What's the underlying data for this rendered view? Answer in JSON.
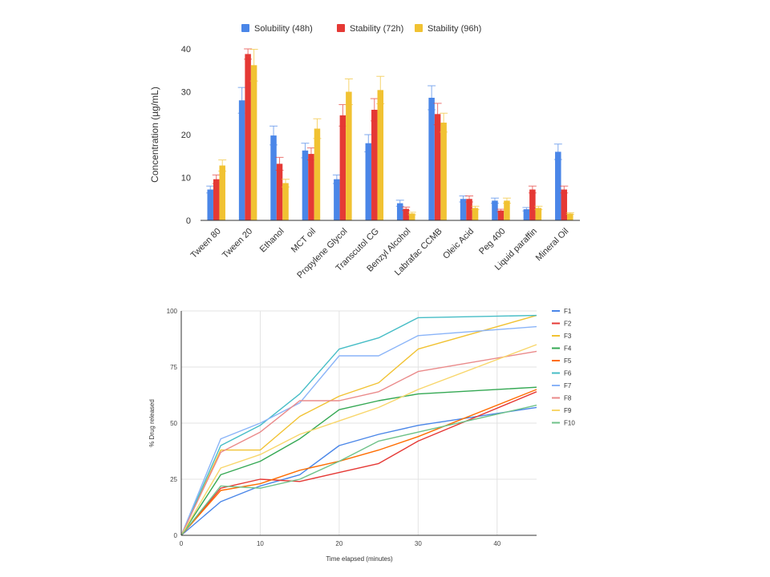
{
  "chart_data": [
    {
      "type": "bar",
      "title": "",
      "xlabel": "",
      "ylabel": "Concentration (µg/mL)",
      "ylim": [
        0,
        40
      ],
      "yticks": [
        0,
        10,
        20,
        30,
        40
      ],
      "legend_position": "top",
      "grid": false,
      "categories": [
        "Tween 80",
        "Tween 20",
        "Ethanol",
        "MCT oil",
        "Propylene Glycol",
        "Transcutol CG",
        "Benzyl Alcohol",
        "Labrafac CCMB",
        "Oleic Acid",
        "Peg 400",
        "Liquid paraffin",
        "Mineral Oil"
      ],
      "series": [
        {
          "name": "Solubility (48h)",
          "color": "#4a86e8",
          "values": [
            7.2,
            28,
            19.8,
            16.3,
            9.6,
            18,
            4,
            28.6,
            5,
            4.6,
            2.6,
            16
          ],
          "errors": [
            0.8,
            3,
            2.2,
            1.7,
            1,
            2,
            0.7,
            2.8,
            0.7,
            0.6,
            0.4,
            1.8
          ]
        },
        {
          "name": "Stability (72h)",
          "color": "#e53935",
          "values": [
            9.6,
            38.8,
            13.2,
            15.5,
            24.5,
            25.8,
            2.7,
            24.8,
            5,
            2.3,
            7.2,
            7.2
          ],
          "errors": [
            1,
            1.2,
            1.5,
            1.4,
            2.5,
            2.6,
            0.4,
            2.5,
            0.7,
            0.3,
            0.8,
            0.8
          ]
        },
        {
          "name": "Stability (96h)",
          "color": "#f1c232",
          "values": [
            12.8,
            36.2,
            8.7,
            21.4,
            30,
            30.4,
            1.6,
            22.8,
            2.9,
            4.6,
            2.9,
            1.6
          ],
          "errors": [
            1.3,
            3.7,
            0.9,
            2.3,
            3,
            3.2,
            0.3,
            2.2,
            0.4,
            0.6,
            0.4,
            0.2
          ]
        }
      ]
    },
    {
      "type": "line",
      "title": "",
      "xlabel": "Time elapsed (minutes)",
      "ylabel": "% Drug released",
      "xlim": [
        0,
        45
      ],
      "ylim": [
        0,
        100
      ],
      "xticks": [
        0,
        10,
        20,
        30,
        40
      ],
      "yticks": [
        0,
        25,
        50,
        75,
        100
      ],
      "grid": true,
      "legend_position": "right",
      "x": [
        0,
        5,
        10,
        15,
        20,
        25,
        30,
        45
      ],
      "series": [
        {
          "name": "F1",
          "color": "#4a86e8",
          "values": [
            0,
            15,
            22,
            27,
            40,
            45,
            49,
            57
          ]
        },
        {
          "name": "F2",
          "color": "#e53935",
          "values": [
            0,
            21,
            25,
            24,
            28,
            32,
            42,
            64
          ]
        },
        {
          "name": "F3",
          "color": "#f1c232",
          "values": [
            0,
            38,
            38,
            53,
            62,
            68,
            83,
            98
          ]
        },
        {
          "name": "F4",
          "color": "#34a853",
          "values": [
            0,
            27,
            33,
            43,
            56,
            60,
            63,
            66
          ]
        },
        {
          "name": "F5",
          "color": "#ff6d01",
          "values": [
            0,
            20,
            23,
            29,
            33,
            38,
            44,
            65
          ]
        },
        {
          "name": "F6",
          "color": "#46bdc6",
          "values": [
            0,
            40,
            49,
            63,
            83,
            88,
            97,
            98
          ]
        },
        {
          "name": "F7",
          "color": "#8ab4f8",
          "values": [
            0,
            43,
            50,
            59,
            80,
            80,
            89,
            93
          ]
        },
        {
          "name": "F8",
          "color": "#ea8a8a",
          "values": [
            0,
            37,
            46,
            60,
            60,
            64,
            73,
            82
          ]
        },
        {
          "name": "F9",
          "color": "#f8d66b",
          "values": [
            0,
            30,
            36,
            45,
            51,
            57,
            65,
            85
          ]
        },
        {
          "name": "F10",
          "color": "#6fc289",
          "values": [
            0,
            22,
            21,
            25,
            33,
            42,
            46,
            58
          ]
        }
      ]
    }
  ]
}
